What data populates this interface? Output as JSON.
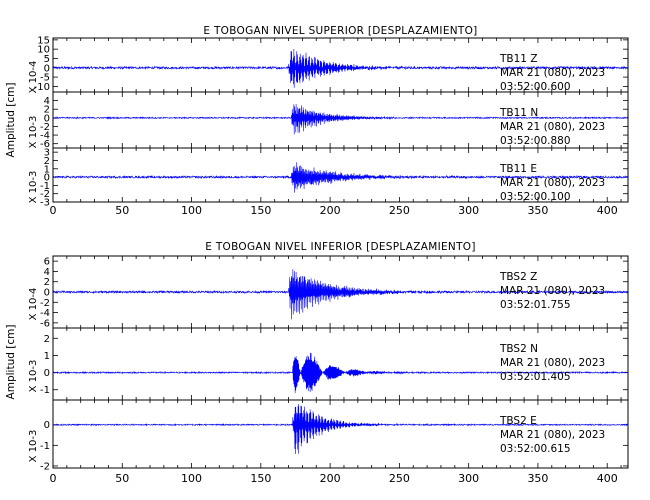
{
  "chart_data": [
    {
      "type": "line",
      "title": "E TOBOGAN NIVEL SUPERIOR [DESPLAZAMIENTO]",
      "ylabel": "Amplitud [cm]",
      "xlim": [
        0,
        415
      ],
      "x_ticks": [
        0,
        50,
        100,
        150,
        200,
        250,
        300,
        350,
        400
      ],
      "series_color": "#0000ff",
      "traces": [
        {
          "station": "TB11",
          "component": "Z",
          "date": "MAR 21 (080), 2023",
          "time": "03:52:00.600",
          "scale": "X 10-4",
          "ylim": [
            -13,
            16
          ],
          "y_ticks": [
            15,
            10,
            5,
            0,
            -5,
            -10
          ],
          "onset": 170,
          "peak": 14,
          "decay": 22,
          "freq": 2.4,
          "noise": 0.6
        },
        {
          "station": "TB11",
          "component": "N",
          "date": "MAR 21 (080), 2023",
          "time": "03:52:00.880",
          "scale": "X 10-3",
          "ylim": [
            -7,
            6
          ],
          "y_ticks": [
            4,
            2,
            0,
            -2,
            -4,
            -6
          ],
          "onset": 172,
          "peak": 4.8,
          "decay": 20,
          "freq": 1.8,
          "noise": 0.15
        },
        {
          "station": "TB11",
          "component": "E",
          "date": "MAR 21 (080), 2023",
          "time": "03:52:00.100",
          "scale": "X 10-3",
          "ylim": [
            -3,
            3.5
          ],
          "y_ticks": [
            3,
            2,
            1,
            0,
            -1,
            -2,
            -3
          ],
          "onset": 172,
          "peak": 2.2,
          "decay": 28,
          "freq": 1.6,
          "noise": 0.12
        }
      ]
    },
    {
      "type": "line",
      "title": "E TOBOGAN NIVEL INFERIOR [DESPLAZAMIENTO]",
      "ylabel": "Amplitud [cm]",
      "xlim": [
        0,
        415
      ],
      "x_ticks": [
        0,
        50,
        100,
        150,
        200,
        250,
        300,
        350,
        400
      ],
      "series_color": "#0000ff",
      "traces": [
        {
          "station": "TBS2",
          "component": "Z",
          "date": "MAR 21 (080), 2023",
          "time": "03:52:01.755",
          "scale": "X 10-4",
          "ylim": [
            -7,
            7
          ],
          "y_ticks": [
            6,
            4,
            2,
            0,
            -2,
            -4,
            -6
          ],
          "onset": 170,
          "peak": 6,
          "decay": 26,
          "freq": 2.6,
          "noise": 0.2
        },
        {
          "station": "TBS2",
          "component": "N",
          "date": "MAR 21 (080), 2023",
          "time": "03:52:01.405",
          "scale": "X 10-3",
          "ylim": [
            -1.6,
            2.6
          ],
          "y_ticks": [
            2,
            1,
            0,
            -1
          ],
          "onset": 173,
          "peak": 2.4,
          "decay": 18,
          "freq": 2.2,
          "noise": 0.04
        },
        {
          "station": "TBS2",
          "component": "E",
          "date": "MAR 21 (080), 2023",
          "time": "03:52:00.615",
          "scale": "X 10-3",
          "ylim": [
            -2.1,
            1.2
          ],
          "y_ticks": [
            0,
            -1,
            -2
          ],
          "onset": 173,
          "peak": 1.9,
          "decay": 16,
          "freq": 2.4,
          "noise": 0.03
        }
      ]
    }
  ]
}
